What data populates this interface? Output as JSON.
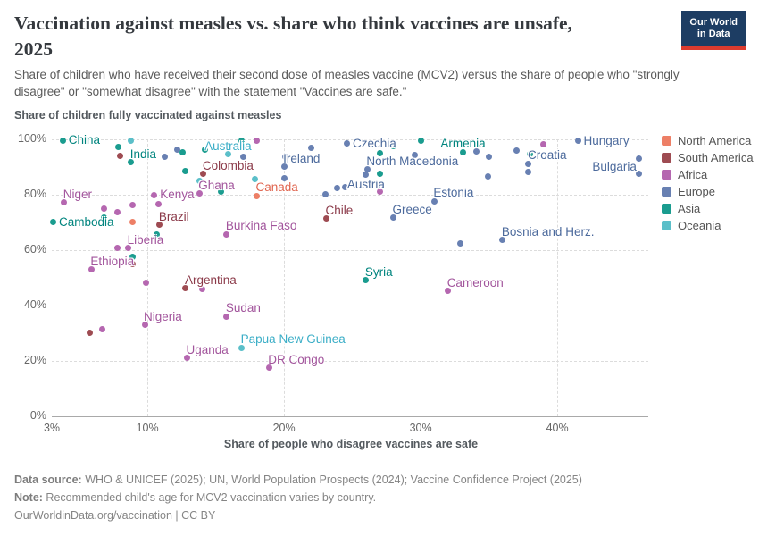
{
  "header": {
    "title_line1": "Vaccination against measles vs. share who think vaccines are unsafe,",
    "title_line2": "2025",
    "subtitle": "Share of children who have received their second dose of measles vaccine (MCV2) versus the share of people who \"strongly disagree\" or \"somewhat disagree\" with the statement \"Vaccines are safe.\""
  },
  "logo": {
    "line1": "Our World",
    "line2": "in Data"
  },
  "chart_data": {
    "type": "scatter",
    "title": "Vaccination against measles vs. share who think vaccines are unsafe, 2025",
    "ylabel": "Share of children fully vaccinated against measles",
    "xlabel": "Share of people who disagree vaccines are safe",
    "xlim": [
      3,
      46.8
    ],
    "ylim": [
      0,
      100
    ],
    "grid": true,
    "legend_position": "right",
    "x_ticks": [
      {
        "v": 3,
        "label": "3%"
      },
      {
        "v": 10,
        "label": "10%"
      },
      {
        "v": 20,
        "label": "20%"
      },
      {
        "v": 30,
        "label": "30%"
      },
      {
        "v": 40,
        "label": "40%"
      }
    ],
    "y_ticks": [
      {
        "v": 0,
        "label": "0%"
      },
      {
        "v": 20,
        "label": "20%"
      },
      {
        "v": 40,
        "label": "40%"
      },
      {
        "v": 60,
        "label": "60%"
      },
      {
        "v": 80,
        "label": "80%"
      },
      {
        "v": 100,
        "label": "100%"
      }
    ],
    "series": [
      {
        "name": "North America",
        "color": "#ED7F66",
        "label_color": "#E0654F",
        "points": [
          {
            "x": 18,
            "y": 79.5,
            "l": "Canada",
            "a": "ar"
          },
          {
            "x": 8.9,
            "y": 70
          }
        ]
      },
      {
        "name": "South America",
        "color": "#9E4B52",
        "label_color": "#8B3A49",
        "points": [
          {
            "x": 14.1,
            "y": 87.3,
            "l": "Colombia",
            "a": "ar"
          },
          {
            "x": 10.9,
            "y": 69,
            "l": "Brazil",
            "a": "ar"
          },
          {
            "x": 23.1,
            "y": 71.2,
            "l": "Chile",
            "a": "ar"
          },
          {
            "x": 12.8,
            "y": 46.2,
            "l": "Argentina",
            "a": "ar"
          },
          {
            "x": 8,
            "y": 94
          },
          {
            "x": 8.9,
            "y": 55
          },
          {
            "x": 5.8,
            "y": 30
          }
        ]
      },
      {
        "name": "Africa",
        "color": "#B567B0",
        "label_color": "#A2559C",
        "points": [
          {
            "x": 3.9,
            "y": 77.1,
            "l": "Niger",
            "a": "ar"
          },
          {
            "x": 10.5,
            "y": 79.8,
            "l": "Kenya",
            "a": "r"
          },
          {
            "x": 13.8,
            "y": 80.3,
            "l": "Ghana",
            "a": "ar"
          },
          {
            "x": 8.6,
            "y": 60.7,
            "l": "Liberia",
            "a": "ar"
          },
          {
            "x": 5.9,
            "y": 52.9,
            "l": "Ethiopia",
            "a": "ar"
          },
          {
            "x": 15.8,
            "y": 65.7,
            "l": "Burkina Faso",
            "a": "ar"
          },
          {
            "x": 9.8,
            "y": 33,
            "l": "Nigeria",
            "a": "ar"
          },
          {
            "x": 15.8,
            "y": 36,
            "l": "Sudan",
            "a": "ar"
          },
          {
            "x": 12.9,
            "y": 21,
            "l": "Uganda",
            "a": "ar"
          },
          {
            "x": 18.9,
            "y": 17.5,
            "l": "DR Congo",
            "a": "ar"
          },
          {
            "x": 32,
            "y": 45.1,
            "l": "Cameroon",
            "a": "ar"
          },
          {
            "x": 6.8,
            "y": 75
          },
          {
            "x": 7.8,
            "y": 73.7
          },
          {
            "x": 8.9,
            "y": 76.3
          },
          {
            "x": 10.8,
            "y": 76.5
          },
          {
            "x": 18,
            "y": 99.5
          },
          {
            "x": 7.8,
            "y": 60.7
          },
          {
            "x": 9.9,
            "y": 48.2
          },
          {
            "x": 14,
            "y": 46
          },
          {
            "x": 6.7,
            "y": 31.5
          },
          {
            "x": 27,
            "y": 81
          },
          {
            "x": 39,
            "y": 98.2
          }
        ]
      },
      {
        "name": "Europe",
        "color": "#6880B2",
        "label_color": "#4C6A9C",
        "points": [
          {
            "x": 20,
            "y": 90,
            "l": "Ireland",
            "a": "ar"
          },
          {
            "x": 24.6,
            "y": 98.3,
            "l": "Czechia",
            "a": "r"
          },
          {
            "x": 26.1,
            "y": 89,
            "l": "North Macedonia",
            "a": "ar"
          },
          {
            "x": 26,
            "y": 87,
            "l": "Austria",
            "a": "b"
          },
          {
            "x": 31,
            "y": 77.6,
            "l": "Estonia",
            "a": "ar"
          },
          {
            "x": 28,
            "y": 71.5,
            "l": "Greece",
            "a": "ar"
          },
          {
            "x": 36,
            "y": 63.5,
            "l": "Bosnia and Herz.",
            "a": "ar"
          },
          {
            "x": 37.9,
            "y": 91,
            "l": "Croatia",
            "a": "ar"
          },
          {
            "x": 46,
            "y": 93,
            "l": "Bulgaria",
            "a": "bl"
          },
          {
            "x": 41.5,
            "y": 99.3,
            "l": "Hungary",
            "a": "r"
          },
          {
            "x": 11.3,
            "y": 93.5
          },
          {
            "x": 12.2,
            "y": 96.2
          },
          {
            "x": 17,
            "y": 93.7
          },
          {
            "x": 20.1,
            "y": 93.5
          },
          {
            "x": 20,
            "y": 85.7
          },
          {
            "x": 22,
            "y": 96.9
          },
          {
            "x": 23,
            "y": 80
          },
          {
            "x": 23.9,
            "y": 82.3
          },
          {
            "x": 24.5,
            "y": 82.6
          },
          {
            "x": 29.6,
            "y": 94.2
          },
          {
            "x": 32.9,
            "y": 62.3
          },
          {
            "x": 34.1,
            "y": 95.6
          },
          {
            "x": 35,
            "y": 93.7
          },
          {
            "x": 37,
            "y": 95.9
          },
          {
            "x": 37.9,
            "y": 88
          },
          {
            "x": 34.9,
            "y": 86.4
          },
          {
            "x": 46,
            "y": 87.5
          }
        ]
      },
      {
        "name": "Asia",
        "color": "#1A9C8F",
        "label_color": "#00847E",
        "points": [
          {
            "x": 3.8,
            "y": 99.5,
            "l": "China",
            "a": "r"
          },
          {
            "x": 8.8,
            "y": 91.5,
            "l": "India",
            "a": "ar"
          },
          {
            "x": 3.1,
            "y": 70,
            "l": "Cambodia",
            "a": "r"
          },
          {
            "x": 26,
            "y": 49,
            "l": "Syria",
            "a": "ar"
          },
          {
            "x": 33.1,
            "y": 95.3,
            "l": "Armenia",
            "a": "a"
          },
          {
            "x": 7.9,
            "y": 97
          },
          {
            "x": 6.8,
            "y": 71.5
          },
          {
            "x": 8.9,
            "y": 57.5
          },
          {
            "x": 10.7,
            "y": 65.7
          },
          {
            "x": 12.6,
            "y": 95.3
          },
          {
            "x": 12.8,
            "y": 88.3
          },
          {
            "x": 14.2,
            "y": 96
          },
          {
            "x": 15.4,
            "y": 80.9
          },
          {
            "x": 16.9,
            "y": 99.5
          },
          {
            "x": 27,
            "y": 94.8
          },
          {
            "x": 27,
            "y": 87.3
          },
          {
            "x": 28,
            "y": 97.5
          },
          {
            "x": 30,
            "y": 99.5
          },
          {
            "x": 38,
            "y": 94.5
          }
        ]
      },
      {
        "name": "Oceania",
        "color": "#5BBFC9",
        "label_color": "#3BAEC7",
        "points": [
          {
            "x": 15.9,
            "y": 94.4,
            "l": "Australia",
            "a": "a"
          },
          {
            "x": 16.9,
            "y": 24.7,
            "l": "Papua New Guinea",
            "a": "ar"
          },
          {
            "x": 8.8,
            "y": 99.5
          },
          {
            "x": 13.8,
            "y": 84.8
          },
          {
            "x": 17.9,
            "y": 85.4
          }
        ]
      }
    ]
  },
  "footer": {
    "source_label": "Data source:",
    "source_text": " WHO & UNICEF (2025); UN, World Population Prospects (2024); Vaccine Confidence Project (2025)",
    "note_label": "Note:",
    "note_text": " Recommended child's age for MCV2 vaccination varies by country.",
    "citation": "OurWorldinData.org/vaccination | CC BY"
  }
}
